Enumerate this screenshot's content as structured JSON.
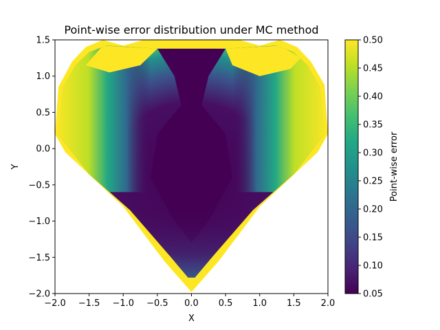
{
  "chart_data": {
    "type": "heatmap",
    "title": "Point-wise error distribution under MC method",
    "xlabel": "X",
    "ylabel": "Y",
    "xlim": [
      -2.0,
      2.0
    ],
    "ylim": [
      -2.0,
      1.5
    ],
    "x_ticks": [
      "−2.0",
      "−1.5",
      "−1.0",
      "−0.5",
      "0.0",
      "0.5",
      "1.0",
      "1.5",
      "2.0"
    ],
    "y_ticks": [
      "−2.0",
      "−1.5",
      "−1.0",
      "−0.5",
      "0.0",
      "0.5",
      "1.0",
      "1.5"
    ],
    "colorbar": {
      "label": "Point-wise error",
      "range": [
        0.05,
        0.5
      ],
      "ticks": [
        "0.05",
        "0.10",
        "0.15",
        "0.20",
        "0.25",
        "0.30",
        "0.35",
        "0.40",
        "0.45",
        "0.50"
      ],
      "colormap": "viridis"
    },
    "domain": "heart-shaped region",
    "grid": false,
    "colors": {
      "low": "#440154",
      "mid": "#21918c",
      "high": "#fde725"
    }
  }
}
